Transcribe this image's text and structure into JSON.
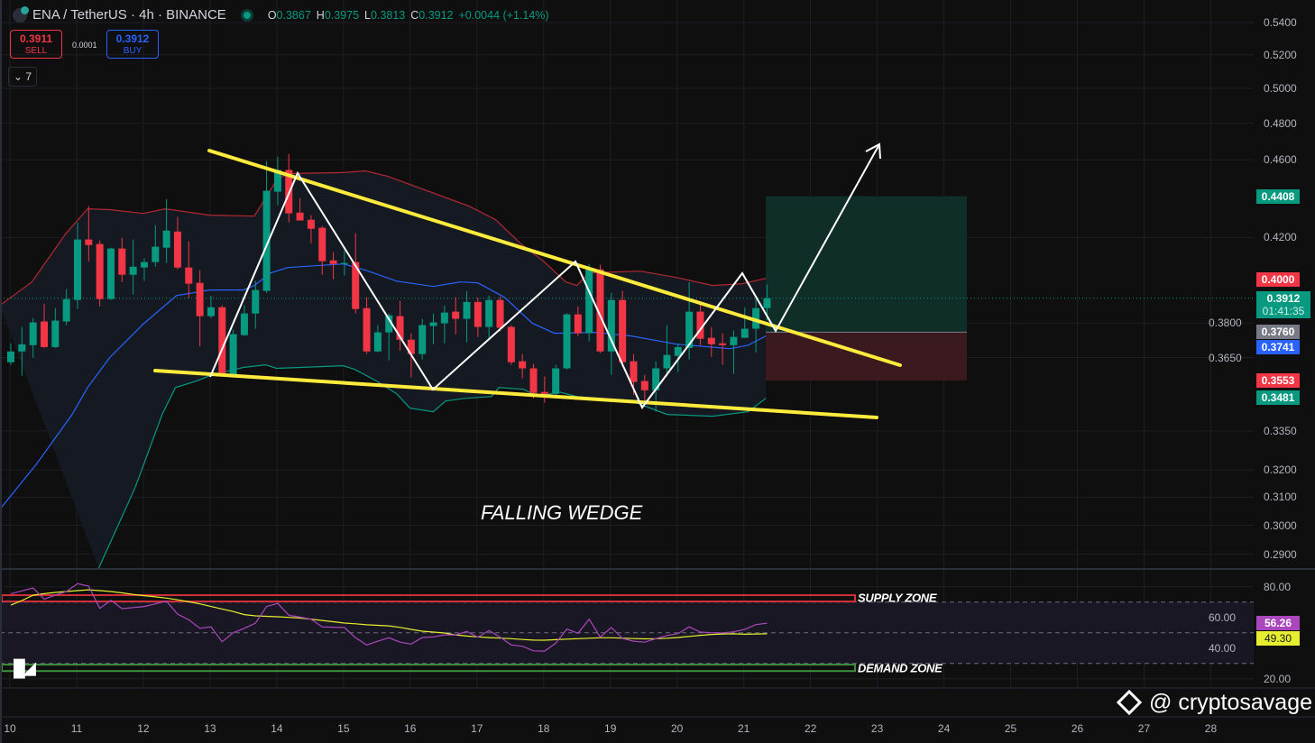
{
  "header": {
    "symbol_title": "ENA / TetherUS · 4h · BINANCE",
    "ohlc": {
      "o_label": "O",
      "o": "0.3867",
      "h_label": "H",
      "h": "0.3975",
      "l_label": "L",
      "l": "0.3813",
      "c_label": "C",
      "c": "0.3912",
      "change": "+0.0044 (+1.14%)"
    },
    "sell": {
      "price": "0.3911",
      "label": "SELL"
    },
    "buy": {
      "price": "0.3912",
      "label": "BUY"
    },
    "spread": "0.0001",
    "collapse_count": "7"
  },
  "colors": {
    "up": "#089981",
    "down": "#f23645",
    "bb_upper": "#b22833",
    "bb_mid": "#2962ff",
    "bb_lower": "#089981",
    "trend": "#ffeb3b",
    "rsi": "#ab47bc",
    "rsi_ma": "#e6ee2f"
  },
  "annotations": {
    "pattern_label": "FALLING WEDGE",
    "supply_label": "SUPPLY ZONE",
    "demand_label": "DEMAND ZONE",
    "watermark": "@ cryptosavage",
    "tv_logo": "TV"
  },
  "chart_data": [
    {
      "type": "candlestick",
      "title": "ENA / TetherUS · 4h · BINANCE",
      "scale": "log",
      "ylim": [
        0.286,
        0.54
      ],
      "price_ticks": [
        "0.5400",
        "0.5200",
        "0.5000",
        "0.4800",
        "0.4600",
        "0.4200",
        "0.3800",
        "0.3650",
        "0.3350",
        "0.3200",
        "0.3100",
        "0.3000",
        "0.2900"
      ],
      "x_ticks": [
        "10",
        "11",
        "12",
        "13",
        "14",
        "15",
        "16",
        "17",
        "18",
        "19",
        "20",
        "21",
        "22",
        "23",
        "24",
        "25",
        "26",
        "27",
        "28"
      ],
      "candles_per_day": 6,
      "ohlc": [
        [
          0.363,
          0.3711,
          0.3619,
          0.3676
        ],
        [
          0.3676,
          0.3783,
          0.3573,
          0.3707
        ],
        [
          0.3703,
          0.3823,
          0.3649,
          0.3803
        ],
        [
          0.3807,
          0.3887,
          0.3691,
          0.3695
        ],
        [
          0.3695,
          0.3867,
          0.3691,
          0.3811
        ],
        [
          0.3807,
          0.3954,
          0.3791,
          0.3908
        ],
        [
          0.3904,
          0.4274,
          0.3863,
          0.419
        ],
        [
          0.419,
          0.4357,
          0.4085,
          0.4163
        ],
        [
          0.4168,
          0.4185,
          0.3875,
          0.3908
        ],
        [
          0.3908,
          0.415,
          0.3904,
          0.4146
        ],
        [
          0.4146,
          0.4198,
          0.3987,
          0.4021
        ],
        [
          0.4021,
          0.419,
          0.3929,
          0.4059
        ],
        [
          0.4055,
          0.4098,
          0.3992,
          0.4081
        ],
        [
          0.4081,
          0.4261,
          0.4059,
          0.4155
        ],
        [
          0.415,
          0.4393,
          0.4077,
          0.4234
        ],
        [
          0.4229,
          0.4302,
          0.4046,
          0.4055
        ],
        [
          0.4055,
          0.4181,
          0.3912,
          0.3979
        ],
        [
          0.3983,
          0.4042,
          0.3699,
          0.3831
        ],
        [
          0.3831,
          0.3924,
          0.3823,
          0.3871
        ],
        [
          0.3871,
          0.3879,
          0.357,
          0.3577
        ],
        [
          0.3577,
          0.3771,
          0.357,
          0.3751
        ],
        [
          0.3747,
          0.3879,
          0.3743,
          0.3843
        ],
        [
          0.3843,
          0.3992,
          0.3775,
          0.395
        ],
        [
          0.3946,
          0.4593,
          0.3937,
          0.4436
        ],
        [
          0.4431,
          0.4617,
          0.4361,
          0.4545
        ],
        [
          0.4545,
          0.4631,
          0.4275,
          0.432
        ],
        [
          0.4324,
          0.4398,
          0.4284,
          0.4284
        ],
        [
          0.4288,
          0.4311,
          0.4172,
          0.4243
        ],
        [
          0.4248,
          0.4257,
          0.4021,
          0.4085
        ],
        [
          0.4089,
          0.4128,
          0.4,
          0.4072
        ],
        [
          0.4072,
          0.4137,
          0.4017,
          0.4077
        ],
        [
          0.4081,
          0.422,
          0.3843,
          0.3863
        ],
        [
          0.3867,
          0.3916,
          0.3665,
          0.3676
        ],
        [
          0.3676,
          0.3791,
          0.3672,
          0.3759
        ],
        [
          0.3759,
          0.3843,
          0.3638,
          0.3835
        ],
        [
          0.3831,
          0.39,
          0.368,
          0.3727
        ],
        [
          0.3727,
          0.3755,
          0.3566,
          0.3665
        ],
        [
          0.3665,
          0.3819,
          0.3642,
          0.3791
        ],
        [
          0.3787,
          0.3843,
          0.3707,
          0.3803
        ],
        [
          0.3799,
          0.3879,
          0.3711,
          0.3847
        ],
        [
          0.3851,
          0.3916,
          0.3751,
          0.3819
        ],
        [
          0.3819,
          0.3945,
          0.3715,
          0.3895
        ],
        [
          0.3895,
          0.3916,
          0.3739,
          0.3783
        ],
        [
          0.3783,
          0.3924,
          0.3735,
          0.3904
        ],
        [
          0.3904,
          0.392,
          0.3763,
          0.3779
        ],
        [
          0.3783,
          0.3791,
          0.3619,
          0.363
        ],
        [
          0.3634,
          0.3665,
          0.3562,
          0.3604
        ],
        [
          0.3604,
          0.3623,
          0.348,
          0.3502
        ],
        [
          0.3506,
          0.357,
          0.3462,
          0.3498
        ],
        [
          0.3498,
          0.3619,
          0.3494,
          0.3604
        ],
        [
          0.3604,
          0.3843,
          0.36,
          0.3839
        ],
        [
          0.3839,
          0.3875,
          0.3743,
          0.3755
        ],
        [
          0.3755,
          0.4072,
          0.3719,
          0.4046
        ],
        [
          0.4046,
          0.4068,
          0.3669,
          0.3676
        ],
        [
          0.3676,
          0.3937,
          0.3577,
          0.3904
        ],
        [
          0.3904,
          0.3945,
          0.3611,
          0.363
        ],
        [
          0.3634,
          0.3665,
          0.3494,
          0.3547
        ],
        [
          0.3551,
          0.3577,
          0.3462,
          0.3513
        ],
        [
          0.3513,
          0.3634,
          0.3426,
          0.3604
        ],
        [
          0.3604,
          0.3791,
          0.357,
          0.3661
        ],
        [
          0.3657,
          0.3711,
          0.3589,
          0.3695
        ],
        [
          0.3691,
          0.3987,
          0.3642,
          0.3851
        ],
        [
          0.3851,
          0.3895,
          0.3703,
          0.3731
        ],
        [
          0.3735,
          0.3783,
          0.3653,
          0.3707
        ],
        [
          0.3711,
          0.3755,
          0.3619,
          0.3703
        ],
        [
          0.3703,
          0.3767,
          0.3581,
          0.3739
        ],
        [
          0.3735,
          0.3871,
          0.3735,
          0.3775
        ],
        [
          0.3775,
          0.3908,
          0.3672,
          0.3867
        ],
        [
          0.3867,
          0.3975,
          0.3813,
          0.3912
        ]
      ],
      "bollinger": {
        "upper": [
          [
            -1,
            0.3879
          ],
          [
            1.9,
            0.3987
          ],
          [
            4.9,
            0.4216
          ],
          [
            6.9,
            0.4343
          ],
          [
            8.9,
            0.4339
          ],
          [
            11.9,
            0.432
          ],
          [
            13.9,
            0.4343
          ],
          [
            17.9,
            0.4311
          ],
          [
            21.9,
            0.4306
          ],
          [
            22.5,
            0.4361
          ],
          [
            23.9,
            0.4492
          ],
          [
            24.9,
            0.4526
          ],
          [
            29.9,
            0.4531
          ],
          [
            31.9,
            0.454
          ],
          [
            33.9,
            0.4511
          ],
          [
            41.2,
            0.4357
          ],
          [
            43.6,
            0.4288
          ],
          [
            45.8,
            0.4172
          ],
          [
            47.9,
            0.4085
          ],
          [
            49.9,
            0.3987
          ],
          [
            50.9,
            0.3971
          ],
          [
            52,
            0.403
          ],
          [
            56.6,
            0.4038
          ],
          [
            59.9,
            0.4008
          ],
          [
            63.1,
            0.3971
          ],
          [
            65.8,
            0.3979
          ],
          [
            67.9,
            0.4004
          ]
        ],
        "middle": [
          [
            -1,
            0.3056
          ],
          [
            2.3,
            0.3222
          ],
          [
            5.5,
            0.3414
          ],
          [
            6.9,
            0.3524
          ],
          [
            8.9,
            0.365
          ],
          [
            11.9,
            0.3795
          ],
          [
            14.9,
            0.3924
          ],
          [
            17.9,
            0.395
          ],
          [
            20.9,
            0.395
          ],
          [
            21.9,
            0.3971
          ],
          [
            23.4,
            0.403
          ],
          [
            24.9,
            0.4055
          ],
          [
            29.9,
            0.4072
          ],
          [
            31.9,
            0.4042
          ],
          [
            34.7,
            0.3991
          ],
          [
            38,
            0.3966
          ],
          [
            40.4,
            0.3987
          ],
          [
            42,
            0.3983
          ],
          [
            44.4,
            0.3916
          ],
          [
            46.9,
            0.3799
          ],
          [
            48.9,
            0.3755
          ],
          [
            52.6,
            0.3759
          ],
          [
            55.8,
            0.3743
          ],
          [
            59.9,
            0.3707
          ],
          [
            64.7,
            0.3688
          ],
          [
            66.3,
            0.3703
          ],
          [
            67.9,
            0.3743
          ]
        ],
        "lower": [
          [
            7.9,
            0.2853
          ],
          [
            11.2,
            0.3137
          ],
          [
            13.6,
            0.3414
          ],
          [
            14.8,
            0.3524
          ],
          [
            16.7,
            0.3551
          ],
          [
            17.9,
            0.3573
          ],
          [
            20.9,
            0.3608
          ],
          [
            22.9,
            0.3619
          ],
          [
            23.9,
            0.3604
          ],
          [
            29.9,
            0.3615
          ],
          [
            30.9,
            0.36
          ],
          [
            32.9,
            0.3551
          ],
          [
            34.7,
            0.3498
          ],
          [
            35.9,
            0.344
          ],
          [
            38,
            0.3426
          ],
          [
            39.1,
            0.3469
          ],
          [
            40.9,
            0.348
          ],
          [
            43.2,
            0.3487
          ],
          [
            43.9,
            0.3524
          ],
          [
            46.1,
            0.3517
          ],
          [
            47.4,
            0.3487
          ],
          [
            49.3,
            0.3506
          ],
          [
            50.9,
            0.3487
          ],
          [
            55.8,
            0.3469
          ],
          [
            59,
            0.3415
          ],
          [
            63.1,
            0.3408
          ],
          [
            66.3,
            0.3426
          ],
          [
            67.9,
            0.348
          ]
        ]
      },
      "price_badges": [
        {
          "value": "0.4408",
          "color": "#089981"
        },
        {
          "value": "0.4000",
          "color": "#f23645"
        },
        {
          "value": "0.3912",
          "sub": "01:41:35",
          "color": "#089981"
        },
        {
          "value": "0.3760",
          "color": "#787b86"
        },
        {
          "value": "0.3741",
          "color": "#2962ff"
        },
        {
          "value": "0.3553",
          "color": "#f23645"
        },
        {
          "value": "0.3481",
          "color": "#089981"
        }
      ],
      "long_position": {
        "entry": 0.376,
        "target": 0.4408,
        "stop": 0.3553
      },
      "last_price": 0.3912
    },
    {
      "type": "line",
      "title": "RSI",
      "ylim": [
        15,
        88
      ],
      "y_ticks": [
        "80.00",
        "60.00",
        "40.00",
        "20.00"
      ],
      "bands": {
        "upper": 70,
        "middle": 50,
        "lower": 30
      },
      "supply_zone": [
        70.4,
        74.5
      ],
      "demand_zone": [
        25,
        29.2
      ],
      "series": [
        {
          "name": "RSI",
          "last": "56.26",
          "values": [
            75.5,
            77.3,
            79.2,
            71.8,
            74.5,
            76.9,
            82,
            80.4,
            65.9,
            71.2,
            65.7,
            66.4,
            67.1,
            68.8,
            70.6,
            62.2,
            58.4,
            52.9,
            53.8,
            44.1,
            50,
            52.9,
            56.3,
            67.1,
            69.1,
            61.4,
            60.2,
            58.8,
            53.8,
            53.6,
            53.4,
            46.7,
            42,
            44.5,
            46.7,
            43.8,
            42.6,
            46.9,
            47.3,
            48.6,
            48.6,
            50.8,
            47.1,
            51.4,
            47.1,
            42,
            41.2,
            38.2,
            38,
            43.2,
            52.4,
            49.6,
            58.8,
            47.1,
            53.4,
            46.3,
            44.5,
            43.8,
            46.1,
            48.2,
            49.4,
            53.8,
            50.4,
            50,
            49.8,
            50.6,
            52.2,
            55.3,
            56.26
          ]
        },
        {
          "name": "RSI MA",
          "last": "49.30",
          "values": [
            68,
            71,
            74.5,
            75.5,
            76.3,
            76.9,
            77.5,
            78,
            77.5,
            76.9,
            76,
            75,
            74.2,
            73.4,
            72.6,
            71.5,
            70.2,
            68.8,
            67.1,
            65.5,
            63.8,
            61.8,
            61,
            60.7,
            60.4,
            60,
            59.6,
            58.8,
            58,
            57.2,
            56.3,
            55.8,
            55.2,
            54.8,
            54.5,
            53.5,
            52.2,
            51,
            50.4,
            49.8,
            48.6,
            47.8,
            47.3,
            46.8,
            46.5,
            46.1,
            45.6,
            45.2,
            45.1,
            45.5,
            45.8,
            46.1,
            46.4,
            46.7,
            46.7,
            46.5,
            46.2,
            46,
            46.1,
            46.4,
            46.9,
            47.6,
            48.3,
            48.9,
            49.2,
            49.3,
            49,
            49.2,
            49.3
          ]
        }
      ]
    }
  ]
}
